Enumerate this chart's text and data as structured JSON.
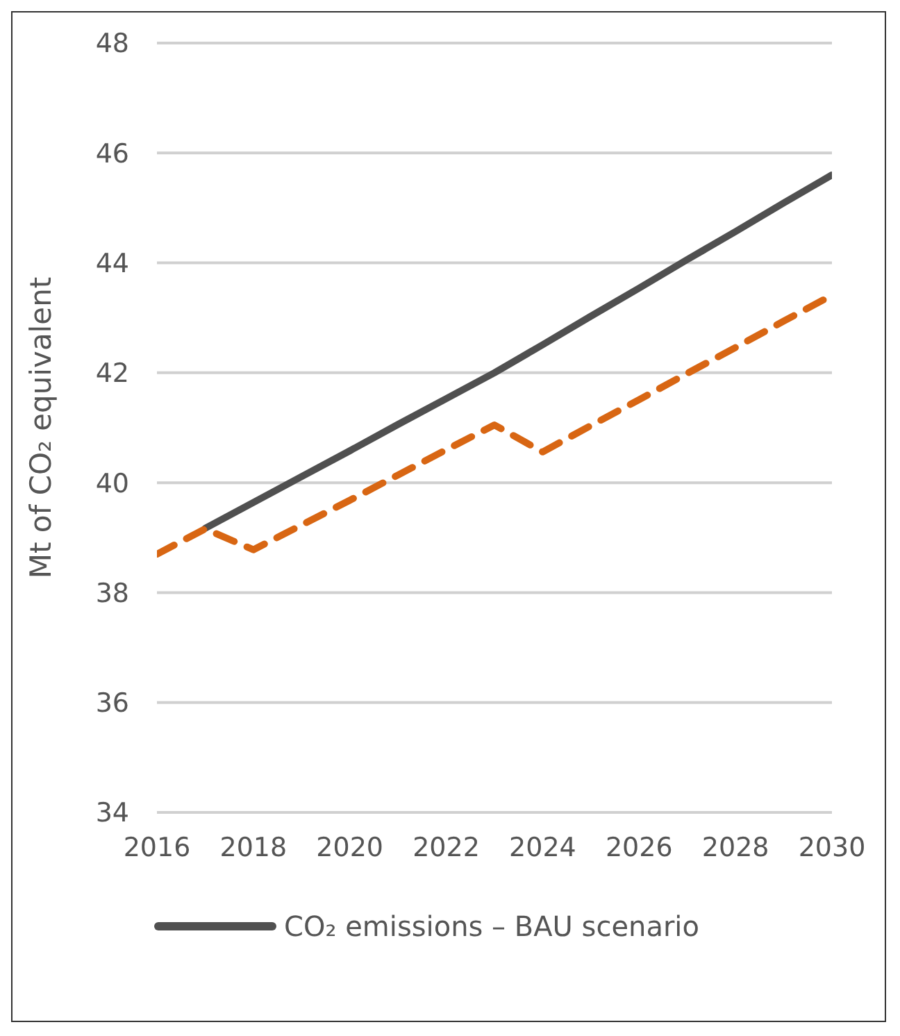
{
  "chart_data": {
    "type": "line",
    "ylabel": "Mt of CO₂ equivalent",
    "x": [
      2016,
      2017,
      2018,
      2019,
      2020,
      2021,
      2022,
      2023,
      2024,
      2025,
      2026,
      2027,
      2028,
      2029,
      2030
    ],
    "xlim": [
      2016,
      2030
    ],
    "xticks": [
      2016,
      2018,
      2020,
      2022,
      2024,
      2026,
      2028,
      2030
    ],
    "ylim": [
      34,
      48
    ],
    "yticks": [
      34,
      36,
      38,
      40,
      42,
      44,
      46,
      48
    ],
    "grid": "y",
    "legend": "bottom",
    "marker": "none",
    "series": [
      {
        "name": "CO₂ emissions – BAU scenario",
        "color": "#505050",
        "line_style": "solid",
        "values": [
          null,
          39.17,
          39.64,
          40.11,
          40.58,
          41.06,
          41.53,
          42.0,
          42.51,
          43.03,
          43.54,
          44.06,
          44.57,
          45.09,
          45.6
        ]
      },
      {
        "color": "#d86613",
        "line_style": "dashed",
        "values": [
          38.7,
          39.16,
          38.78,
          39.23,
          39.68,
          40.14,
          40.6,
          41.05,
          40.56,
          41.04,
          41.51,
          41.99,
          42.46,
          42.94,
          43.41
        ]
      }
    ]
  }
}
